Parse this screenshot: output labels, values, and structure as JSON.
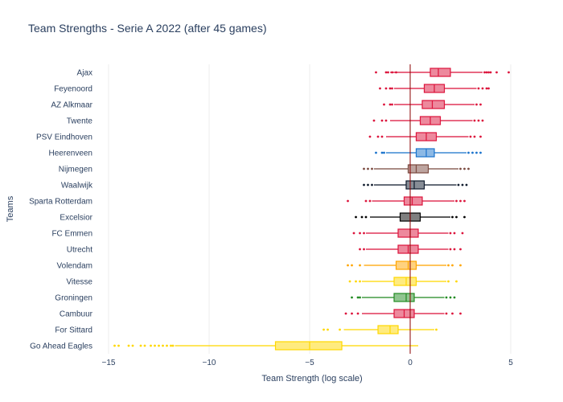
{
  "chart_data": {
    "type": "box",
    "title": "Team Strengths - Serie A 2022 (after 45 games)",
    "xlabel": "Team Strength (log scale)",
    "ylabel": "Teams",
    "xlim": [
      -15.2,
      5.2
    ],
    "xticks": [
      -15,
      -10,
      -5,
      0,
      5
    ],
    "xtick_labels": [
      "−15",
      "−10",
      "−5",
      "0",
      "5"
    ],
    "reference_line_x": 0,
    "grid": "vertical",
    "legend": "none",
    "teams": [
      {
        "name": "Ajax",
        "color": "#dc143c",
        "q1": 1.0,
        "median": 1.4,
        "q3": 2.0,
        "wlo": -1.0,
        "whi": 3.6,
        "outliers": [
          -1.7,
          -1.2,
          -1.1,
          -0.9,
          -0.7,
          3.7,
          3.8,
          3.9,
          4.0,
          4.3,
          4.9
        ]
      },
      {
        "name": "Feyenoord",
        "color": "#dc143c",
        "q1": 0.7,
        "median": 1.2,
        "q3": 1.7,
        "wlo": -0.8,
        "whi": 3.3,
        "outliers": [
          -1.5,
          -1.2,
          -1.0,
          -0.9,
          3.4,
          3.6,
          3.8,
          3.9
        ]
      },
      {
        "name": "AZ Alkmaar",
        "color": "#dc143c",
        "q1": 0.6,
        "median": 1.1,
        "q3": 1.7,
        "wlo": -0.8,
        "whi": 3.2,
        "outliers": [
          -1.3,
          -1.0,
          -0.9,
          3.3,
          3.5
        ]
      },
      {
        "name": "Twente",
        "color": "#dc143c",
        "q1": 0.5,
        "median": 1.0,
        "q3": 1.5,
        "wlo": -1.0,
        "whi": 3.1,
        "outliers": [
          -1.8,
          -1.4,
          -1.2,
          3.2,
          3.4,
          3.6
        ]
      },
      {
        "name": "PSV Eindhoven",
        "color": "#dc143c",
        "q1": 0.3,
        "median": 0.8,
        "q3": 1.3,
        "wlo": -1.2,
        "whi": 2.9,
        "outliers": [
          -2.0,
          -1.6,
          -1.4,
          3.0,
          3.2,
          3.5
        ]
      },
      {
        "name": "Heerenveen",
        "color": "#1a73cc",
        "q1": 0.3,
        "median": 0.8,
        "q3": 1.2,
        "wlo": -1.2,
        "whi": 2.8,
        "outliers": [
          -1.7,
          -1.4,
          -1.3,
          2.9,
          3.1,
          3.3,
          3.5
        ]
      },
      {
        "name": "Nijmegen",
        "color": "#7b4a3f",
        "q1": -0.1,
        "median": 0.3,
        "q3": 0.9,
        "wlo": -1.8,
        "whi": 2.4,
        "outliers": [
          -2.3,
          -2.1,
          -1.9,
          2.5,
          2.7,
          2.9
        ]
      },
      {
        "name": "Waalwijk",
        "color": "#0f1b2d",
        "q1": -0.2,
        "median": 0.2,
        "q3": 0.7,
        "wlo": -1.8,
        "whi": 2.3,
        "outliers": [
          -2.3,
          -2.1,
          -1.9,
          2.4,
          2.6,
          2.8
        ]
      },
      {
        "name": "Sparta Rotterdam",
        "color": "#dc143c",
        "q1": -0.3,
        "median": 0.1,
        "q3": 0.6,
        "wlo": -1.9,
        "whi": 2.2,
        "outliers": [
          -3.1,
          -2.2,
          -2.0,
          2.3,
          2.5,
          2.7
        ]
      },
      {
        "name": "Excelsior",
        "color": "#000000",
        "q1": -0.5,
        "median": 0.0,
        "q3": 0.5,
        "wlo": -2.0,
        "whi": 2.0,
        "outliers": [
          -2.7,
          -2.4,
          -2.2,
          2.1,
          2.3,
          2.7
        ]
      },
      {
        "name": "FC Emmen",
        "color": "#dc143c",
        "q1": -0.6,
        "median": 0.0,
        "q3": 0.4,
        "wlo": -2.2,
        "whi": 1.9,
        "outliers": [
          -2.8,
          -2.5,
          -2.3,
          2.0,
          2.2,
          2.6
        ]
      },
      {
        "name": "Utrecht",
        "color": "#dc143c",
        "q1": -0.6,
        "median": -0.1,
        "q3": 0.4,
        "wlo": -2.2,
        "whi": 1.9,
        "outliers": [
          -2.5,
          -2.3,
          2.0,
          2.2,
          2.5
        ]
      },
      {
        "name": "Volendam",
        "color": "#ffa500",
        "q1": -0.7,
        "median": -0.1,
        "q3": 0.3,
        "wlo": -2.3,
        "whi": 1.8,
        "outliers": [
          -3.1,
          -2.9,
          -2.5,
          1.9,
          2.1,
          2.5
        ]
      },
      {
        "name": "Vitesse",
        "color": "#ffd700",
        "q1": -0.8,
        "median": -0.2,
        "q3": 0.3,
        "wlo": -2.4,
        "whi": 1.8,
        "outliers": [
          -3.0,
          -2.7,
          -2.5,
          1.9,
          2.3
        ]
      },
      {
        "name": "Groningen",
        "color": "#228b22",
        "q1": -0.8,
        "median": -0.2,
        "q3": 0.2,
        "wlo": -2.4,
        "whi": 1.7,
        "outliers": [
          -2.9,
          -2.6,
          -2.5,
          1.8,
          2.0,
          2.2
        ]
      },
      {
        "name": "Cambuur",
        "color": "#dc143c",
        "q1": -0.8,
        "median": -0.3,
        "q3": 0.2,
        "wlo": -2.4,
        "whi": 1.7,
        "outliers": [
          -3.2,
          -2.9,
          -2.6,
          1.8,
          2.1,
          2.5
        ]
      },
      {
        "name": "For Sittard",
        "color": "#ffd700",
        "q1": -1.6,
        "median": -1.0,
        "q3": -0.6,
        "wlo": -3.3,
        "whi": 1.2,
        "outliers": [
          -4.3,
          -4.1,
          -3.5,
          1.3
        ]
      },
      {
        "name": "Go Ahead Eagles",
        "color": "#ffd700",
        "q1": -6.7,
        "median": -5.0,
        "q3": -3.4,
        "wlo": -11.7,
        "whi": 0.4,
        "outliers": [
          -14.7,
          -14.5,
          -14.0,
          -13.8,
          -13.4,
          -13.2,
          -12.9,
          -12.7,
          -12.5,
          -12.3,
          -12.1,
          -11.9,
          -11.8
        ]
      }
    ]
  }
}
